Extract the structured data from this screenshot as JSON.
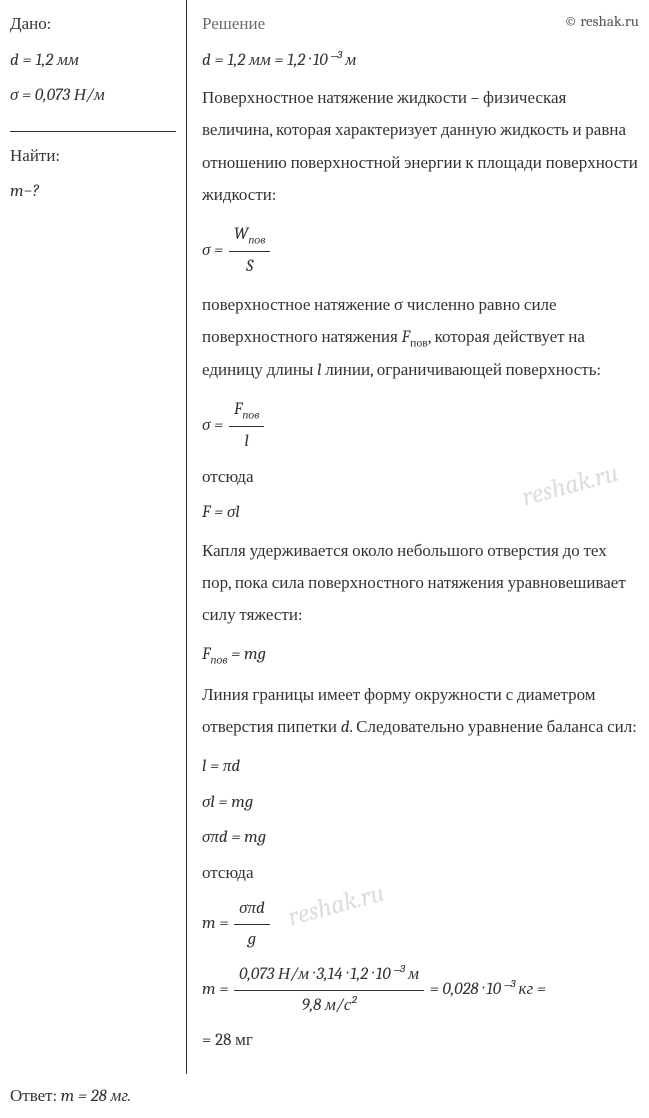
{
  "given": {
    "header": "Дано:",
    "d_line": "d = 1,2 мм",
    "sigma_line": "σ = 0,073 Н/м"
  },
  "find": {
    "header": "Найти:",
    "m_line": "m−?"
  },
  "solution": {
    "header": "Решение",
    "copyright": "© reshak.ru",
    "conversion": "d = 1,2 мм = 1,2 · 10⁻³ м",
    "p1": "Поверхностное натяжение жидкости – физическая величина, которая характеризует данную жидкость и равна отношению поверхностной энергии к площади поверхности жидкости:",
    "f1_lhs": "σ =",
    "f1_num": "Wпов",
    "f1_den": "S",
    "p2": "поверхностное натяжение σ численно равно силе поверхностного натяжения Fпов, которая действует на единицу длины l линии, ограничивающей поверхность:",
    "f2_lhs": "σ =",
    "f2_num": "Fпов",
    "f2_den": "l",
    "p3": "отсюда",
    "f3": "F = σl",
    "p4": "Капля удерживается около небольшого отверстия до тех пор, пока сила поверхностного натяжения уравновешивает силу тяжести:",
    "f4": "Fпов = mg",
    "p5": "Линия границы имеет форму окружности с диаметром отверстия пипетки d. Следовательно уравнение баланса сил:",
    "f5": "l = πd",
    "f6": "σl = mg",
    "f7": "σπd = mg",
    "p6": "отсюда",
    "f8_lhs": "m =",
    "f8_num": "σπd",
    "f8_den": "g",
    "f9_lhs": "m =",
    "f9_num": "0,073 Н/м · 3,14 · 1,2 · 10⁻³ м",
    "f9_den": "9,8 м/с²",
    "f9_rhs": "= 0,028 · 10⁻³ кг =",
    "f10": "= 28 мг"
  },
  "answer": {
    "label": "Ответ:  ",
    "value": "m = 28 мг."
  },
  "watermark": "reshak.ru",
  "colors": {
    "text": "#333333",
    "border": "#333333",
    "solution_header": "#6a6a6a",
    "watermark": "#dddddd",
    "background": "#ffffff"
  },
  "typography": {
    "base_fontsize": 17,
    "watermark_fontsize": 26,
    "font_family": "Cambria, Times New Roman, serif"
  }
}
